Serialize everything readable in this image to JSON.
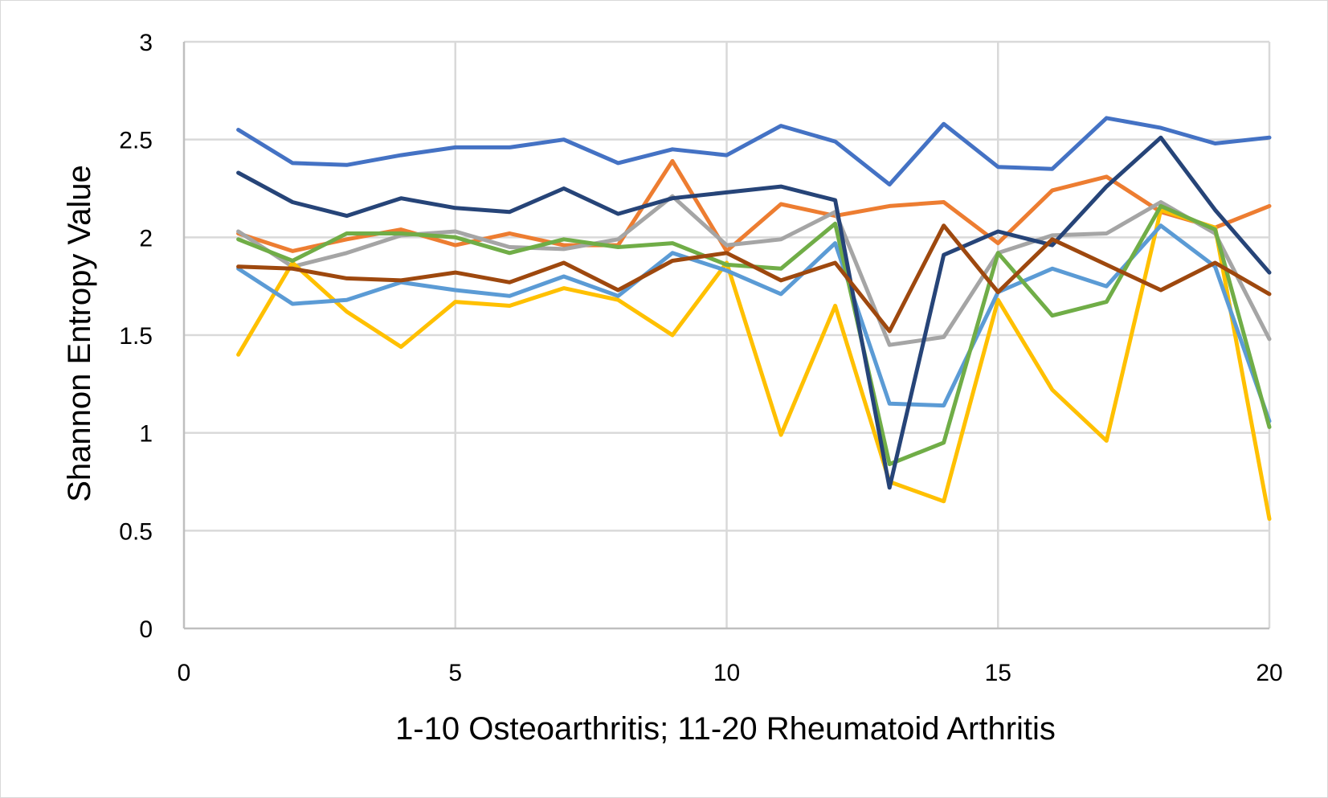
{
  "chart_data": {
    "type": "line",
    "title": "",
    "xlabel": "1-10 Osteoarthritis; 11-20 Rheumatoid Arthritis",
    "ylabel": "Shannon Entropy Value",
    "xlim": [
      0,
      20
    ],
    "ylim": [
      0,
      3
    ],
    "xticks": [
      "0",
      "5",
      "10",
      "15",
      "20"
    ],
    "xtick_values": [
      0,
      5,
      10,
      15,
      20
    ],
    "yticks": [
      "0",
      "0.5",
      "1",
      "1.5",
      "2",
      "2.5",
      "3"
    ],
    "ytick_values": [
      0,
      0.5,
      1,
      1.5,
      2,
      2.5,
      3
    ],
    "grid": true,
    "legend": "none",
    "x": [
      1,
      2,
      3,
      4,
      5,
      6,
      7,
      8,
      9,
      10,
      11,
      12,
      13,
      14,
      15,
      16,
      17,
      18,
      19,
      20
    ],
    "series": [
      {
        "color": "#4472c4",
        "values": [
          2.55,
          2.38,
          2.37,
          2.42,
          2.46,
          2.46,
          2.5,
          2.38,
          2.45,
          2.42,
          2.57,
          2.49,
          2.27,
          2.58,
          2.36,
          2.35,
          2.61,
          2.56,
          2.48,
          2.51
        ]
      },
      {
        "color": "#ed7d31",
        "values": [
          2.02,
          1.93,
          1.99,
          2.04,
          1.96,
          2.02,
          1.96,
          1.96,
          2.39,
          1.93,
          2.17,
          2.11,
          2.16,
          2.18,
          1.97,
          2.24,
          2.31,
          2.13,
          2.05,
          2.16
        ]
      },
      {
        "color": "#a5a5a5",
        "values": [
          2.03,
          1.85,
          1.92,
          2.01,
          2.03,
          1.95,
          1.94,
          1.99,
          2.21,
          1.96,
          1.99,
          2.13,
          1.45,
          1.49,
          1.92,
          2.01,
          2.02,
          2.18,
          2.02,
          1.48
        ]
      },
      {
        "color": "#ffc000",
        "values": [
          1.4,
          1.87,
          1.62,
          1.44,
          1.67,
          1.65,
          1.74,
          1.68,
          1.5,
          1.87,
          0.99,
          1.65,
          0.75,
          0.65,
          1.68,
          1.22,
          0.96,
          2.14,
          2.05,
          0.56
        ]
      },
      {
        "color": "#5b9bd5",
        "values": [
          1.84,
          1.66,
          1.68,
          1.77,
          1.73,
          1.7,
          1.8,
          1.7,
          1.92,
          1.83,
          1.71,
          1.97,
          1.15,
          1.14,
          1.72,
          1.84,
          1.75,
          2.06,
          1.85,
          1.06
        ]
      },
      {
        "color": "#70ad47",
        "values": [
          1.99,
          1.88,
          2.02,
          2.02,
          2.0,
          1.92,
          1.99,
          1.95,
          1.97,
          1.86,
          1.84,
          2.07,
          0.84,
          0.95,
          1.92,
          1.6,
          1.67,
          2.16,
          2.04,
          1.03
        ]
      },
      {
        "color": "#264478",
        "values": [
          2.33,
          2.18,
          2.11,
          2.2,
          2.15,
          2.13,
          2.25,
          2.12,
          2.2,
          2.23,
          2.26,
          2.19,
          0.72,
          1.91,
          2.03,
          1.96,
          2.26,
          2.51,
          2.14,
          1.82
        ]
      },
      {
        "color": "#9e480e",
        "values": [
          1.85,
          1.84,
          1.79,
          1.78,
          1.82,
          1.77,
          1.87,
          1.73,
          1.88,
          1.92,
          1.78,
          1.87,
          1.52,
          2.06,
          1.72,
          1.99,
          1.86,
          1.73,
          1.87,
          1.71
        ]
      }
    ]
  }
}
